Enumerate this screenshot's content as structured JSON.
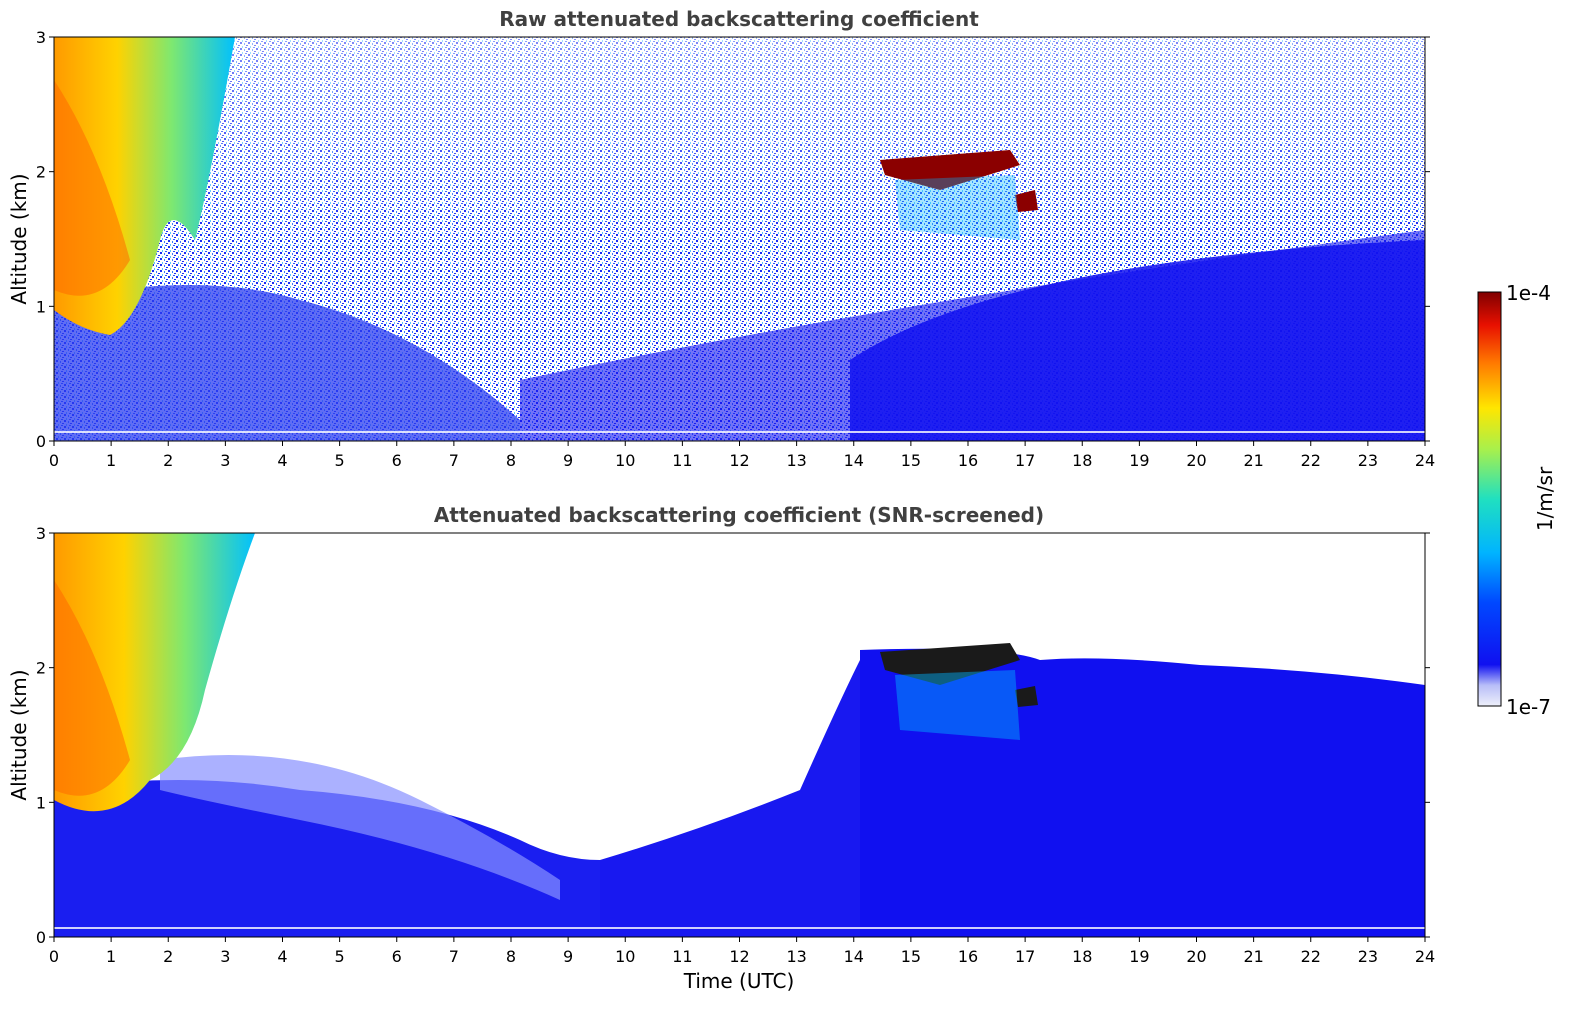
{
  "colorbar": {
    "label": "1/m/sr",
    "max_label": "1e-4",
    "min_label": "1e-7",
    "vmin": 1e-07,
    "vmax": 0.0001,
    "scale": "log",
    "colormap": "jet"
  },
  "colors": {
    "background": "#ffffff",
    "title": "#404040",
    "low_signal": "#1010f0",
    "cloud_core": "#8b0000"
  },
  "chart_data": [
    {
      "type": "heatmap",
      "title": "Raw attenuated backscattering coefficient",
      "xlabel": "",
      "ylabel": "Altitude (km)",
      "xlim": [
        0,
        24
      ],
      "ylim": [
        0,
        3
      ],
      "x_ticks": [
        "0",
        "1",
        "2",
        "3",
        "4",
        "5",
        "6",
        "7",
        "8",
        "9",
        "10",
        "11",
        "12",
        "13",
        "14",
        "15",
        "16",
        "17",
        "18",
        "19",
        "20",
        "21",
        "22",
        "23",
        "24"
      ],
      "y_ticks": [
        "0",
        "1",
        "2",
        "3"
      ],
      "grid": false,
      "features": [
        {
          "time": [
            0,
            3
          ],
          "altitude": [
            0.8,
            3.0
          ],
          "level": "1e-5 to 5e-5"
        },
        {
          "time": [
            14.5,
            17.2
          ],
          "altitude": [
            1.7,
            2.2
          ],
          "level": ">= 1e-4"
        },
        {
          "time": [
            0,
            24
          ],
          "altitude": [
            0,
            1.0
          ],
          "level": "~1e-6"
        }
      ]
    },
    {
      "type": "heatmap",
      "title": "Attenuated backscattering coefficient (SNR-screened)",
      "xlabel": "Time (UTC)",
      "ylabel": "Altitude (km)",
      "xlim": [
        0,
        24
      ],
      "ylim": [
        0,
        3
      ],
      "x_ticks": [
        "0",
        "1",
        "2",
        "3",
        "4",
        "5",
        "6",
        "7",
        "8",
        "9",
        "10",
        "11",
        "12",
        "13",
        "14",
        "15",
        "16",
        "17",
        "18",
        "19",
        "20",
        "21",
        "22",
        "23",
        "24"
      ],
      "y_ticks": [
        "0",
        "1",
        "2",
        "3"
      ],
      "grid": false,
      "features": [
        {
          "time": [
            0,
            3
          ],
          "altitude": [
            0.8,
            3.0
          ],
          "level": "1e-5 to 5e-5"
        },
        {
          "time": [
            14.5,
            17.2
          ],
          "altitude": [
            1.7,
            2.2
          ],
          "level": ">= 1e-4"
        },
        {
          "time": [
            0,
            24
          ],
          "altitude": [
            0,
            1.9
          ],
          "level": "~1e-6"
        }
      ]
    }
  ]
}
